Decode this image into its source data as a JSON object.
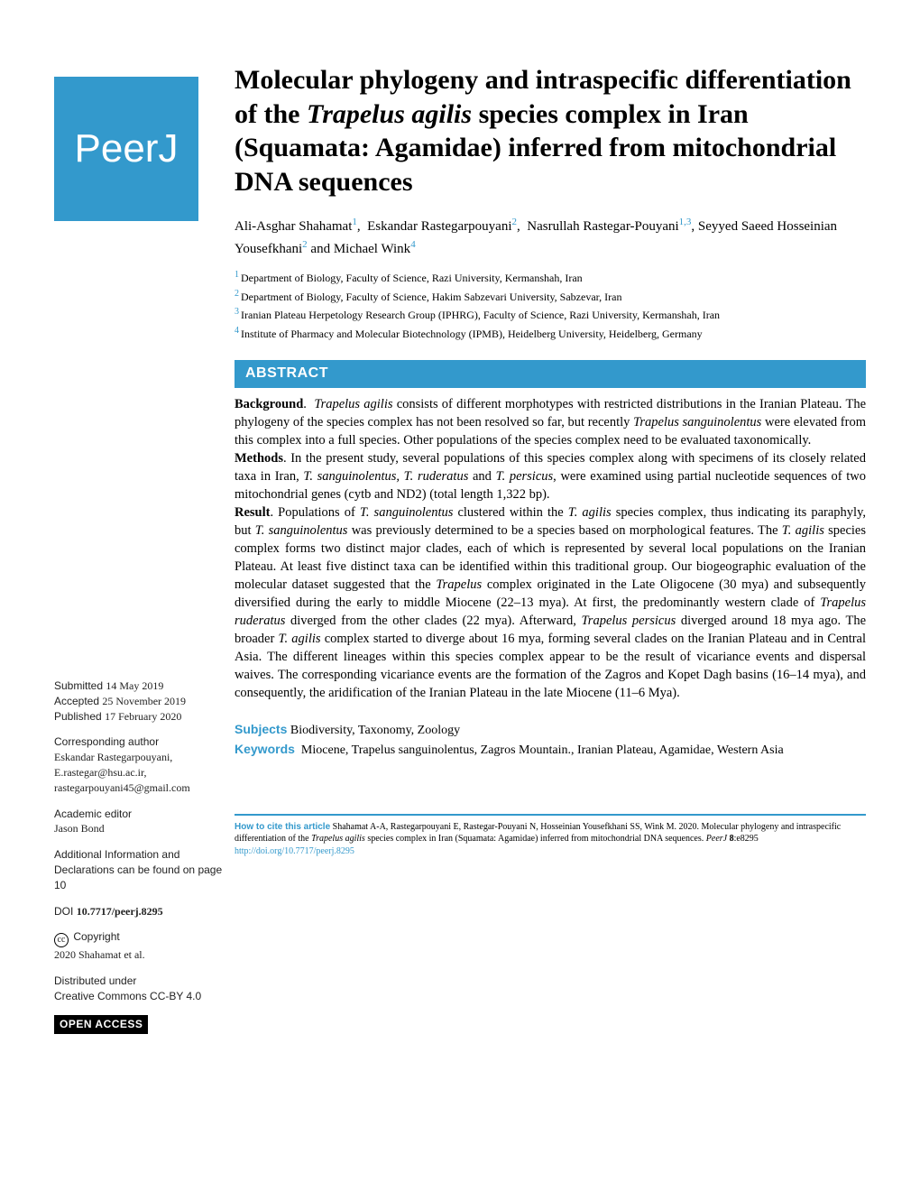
{
  "logo_text": "PeerJ",
  "title_parts": {
    "pre": "Molecular phylogeny and intraspecific differentiation of the ",
    "italic": "Trapelus agilis",
    "post": " species complex in Iran (Squamata: Agamidae) inferred from mitochondrial DNA sequences"
  },
  "authors": [
    {
      "name": "Ali-Asghar Shahamat",
      "sup": "1"
    },
    {
      "name": "Eskandar Rastegarpouyani",
      "sup": "2"
    },
    {
      "name": "Nasrullah Rastegar-Pouyani",
      "sup": "1,3"
    },
    {
      "name": "Seyyed Saeed Hosseinian Yousefkhani",
      "sup": "2"
    },
    {
      "name": "Michael Wink",
      "sup": "4"
    }
  ],
  "affiliations": [
    {
      "num": "1",
      "text": "Department of Biology, Faculty of Science, Razi University, Kermanshah, Iran"
    },
    {
      "num": "2",
      "text": "Department of Biology, Faculty of Science, Hakim Sabzevari University, Sabzevar, Iran"
    },
    {
      "num": "3",
      "text": "Iranian Plateau Herpetology Research Group (IPHRG), Faculty of Science, Razi University, Kermanshah, Iran"
    },
    {
      "num": "4",
      "text": "Institute of Pharmacy and Molecular Biotechnology (IPMB), Heidelberg University, Heidelberg, Germany"
    }
  ],
  "abstract_heading": "ABSTRACT",
  "abstract": {
    "background_label": "Background",
    "background": "Trapelus agilis consists of different morphotypes with restricted distributions in the Iranian Plateau. The phylogeny of the species complex has not been resolved so far, but recently Trapelus sanguinolentus were elevated from this complex into a full species. Other populations of the species complex need to be evaluated taxonomically.",
    "methods_label": "Methods",
    "methods": "In the present study, several populations of this species complex along with specimens of its closely related taxa in Iran, T. sanguinolentus, T. ruderatus and T. persicus, were examined using partial nucleotide sequences of two mitochondrial genes (cytb and ND2) (total length 1,322 bp).",
    "result_label": "Result",
    "result": "Populations of T. sanguinolentus clustered within the T. agilis species complex, thus indicating its paraphyly, but T. sanguinolentus was previously determined to be a species based on morphological features. The T. agilis species complex forms two distinct major clades, each of which is represented by several local populations on the Iranian Plateau. At least five distinct taxa can be identified within this traditional group. Our biogeographic evaluation of the molecular dataset suggested that the Trapelus complex originated in the Late Oligocene (30 mya) and subsequently diversified during the early to middle Miocene (22–13 mya). At first, the predominantly western clade of Trapelus ruderatus diverged from the other clades (22 mya). Afterward, Trapelus persicus diverged around 18 mya ago. The broader T. agilis complex started to diverge about 16 mya, forming several clades on the Iranian Plateau and in Central Asia. The different lineages within this species complex appear to be the result of vicariance events and dispersal waives. The corresponding vicariance events are the formation of the Zagros and Kopet Dagh basins (16–14 mya), and consequently, the aridification of the Iranian Plateau in the late Miocene (11–6 Mya)."
  },
  "sidebar": {
    "submitted_label": "Submitted",
    "submitted": "14 May 2019",
    "accepted_label": "Accepted",
    "accepted": "25 November 2019",
    "published_label": "Published",
    "published": "17 February 2020",
    "corresponding_label": "Corresponding author",
    "corresponding_name": "Eskandar Rastegarpouyani,",
    "corresponding_email1": "E.rastegar@hsu.ac.ir,",
    "corresponding_email2": "rastegarpouyani45@gmail.com",
    "editor_label": "Academic editor",
    "editor_name": "Jason Bond",
    "addl_label": "Additional Information and Declarations can be found on page 10",
    "doi_label": "DOI",
    "doi": "10.7717/peerj.8295",
    "copyright_label": "Copyright",
    "copyright_text": "2020 Shahamat et al.",
    "distributed_label": "Distributed under",
    "distributed_text": "Creative Commons CC-BY 4.0",
    "open_access": "OPEN ACCESS"
  },
  "subjects_label": "Subjects",
  "subjects": "Biodiversity, Taxonomy, Zoology",
  "keywords_label": "Keywords",
  "keywords": "Miocene, Trapelus sanguinolentus, Zagros Mountain., Iranian Plateau, Agamidae, Western Asia",
  "citation": {
    "label": "How to cite this article",
    "text": "Shahamat A-A, Rastegarpouyani E, Rastegar-Pouyani N, Hosseinian Yousefkhani SS, Wink M. 2020. Molecular phylogeny and intraspecific differentiation of the Trapelus agilis species complex in Iran (Squamata: Agamidae) inferred from mitochondrial DNA sequences. PeerJ 8:e8295 ",
    "link": "http://doi.org/10.7717/peerj.8295"
  },
  "colors": {
    "brand_blue": "#3399cc",
    "black": "#000000",
    "white": "#ffffff"
  }
}
